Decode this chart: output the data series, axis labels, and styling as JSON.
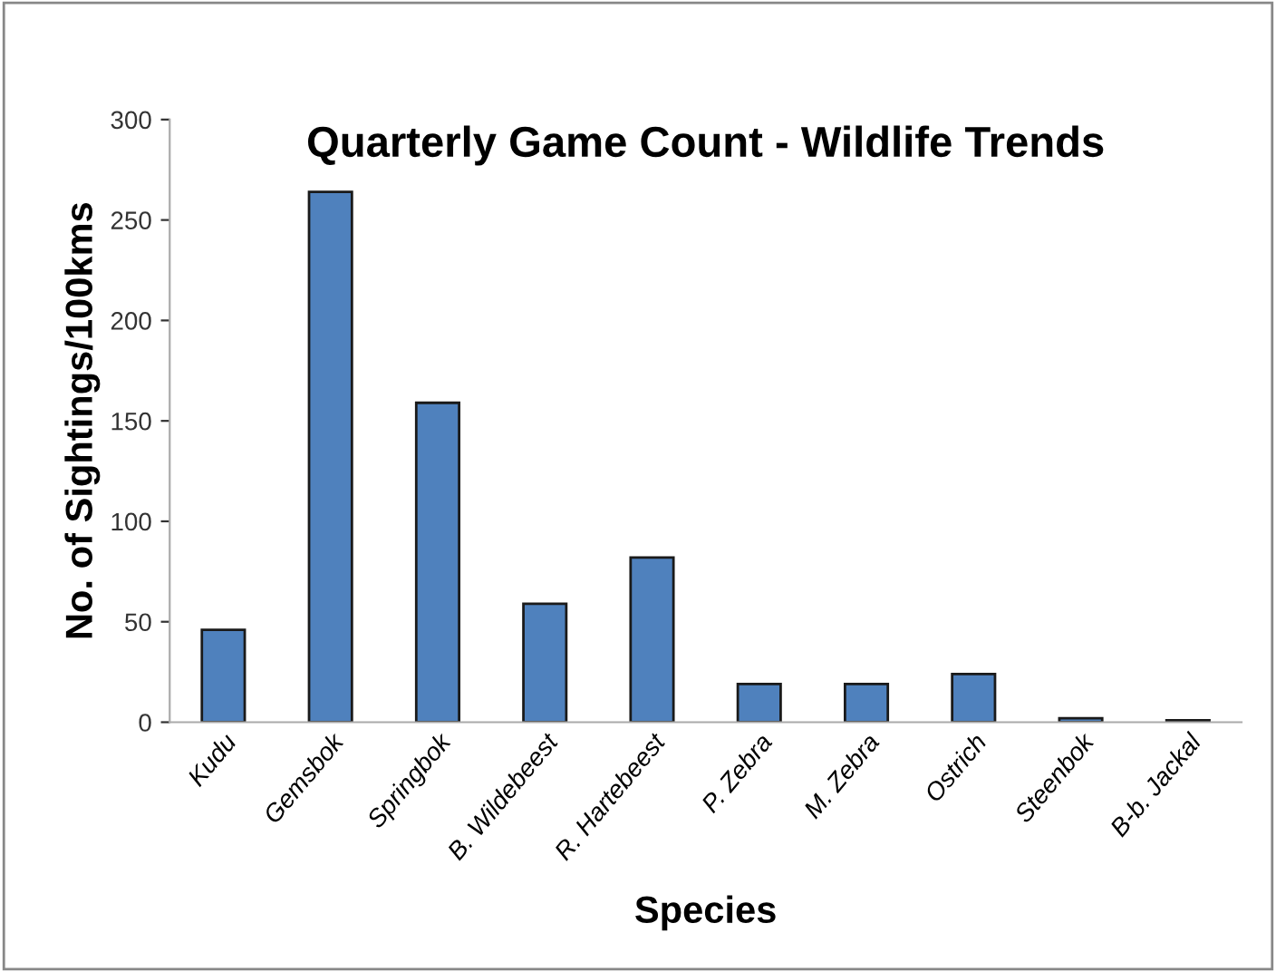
{
  "chart_data": {
    "type": "bar",
    "title": "Quarterly Game Count - Wildlife Trends",
    "xlabel": "Species",
    "ylabel": "No. of Sightings/100kms",
    "categories": [
      "Kudu",
      "Gemsbok",
      "Springbok",
      "B. Wildebeest",
      "R. Hartebeest",
      "P. Zebra",
      "M. Zebra",
      "Ostrich",
      "Steenbok",
      "B-b. Jackal"
    ],
    "values": [
      46,
      264,
      159,
      59,
      82,
      19,
      19,
      24,
      2,
      1
    ],
    "color": "#4f81bd",
    "ylim": [
      0,
      300
    ],
    "yticks": [
      0,
      50,
      100,
      150,
      200,
      250,
      300
    ],
    "grid": false
  }
}
